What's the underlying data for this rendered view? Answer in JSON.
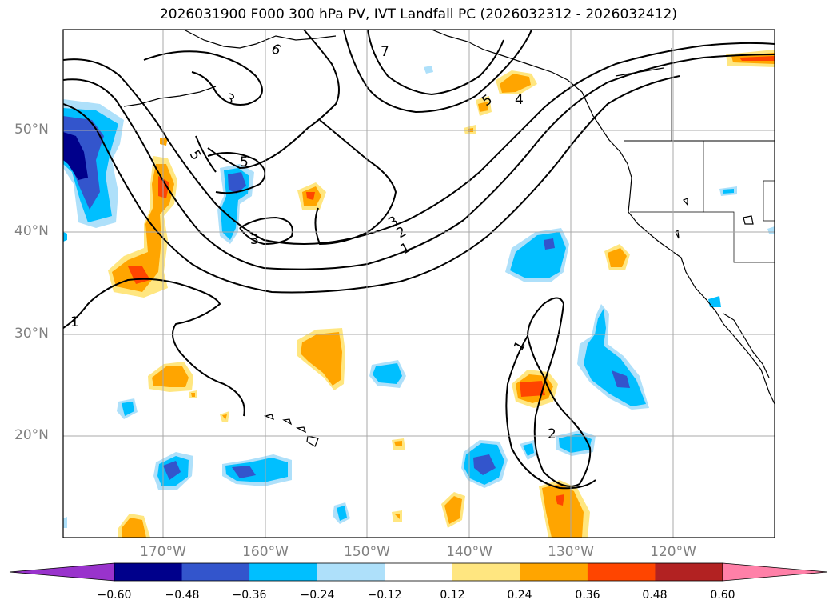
{
  "title": "2026031900 F000 300 hPa PV, IVT Landfall PC (2026032312 - 2026032412)",
  "lat_labels": [
    "50°N",
    "40°N",
    "30°N",
    "20°N"
  ],
  "lon_labels": [
    "170°W",
    "160°W",
    "150°W",
    "140°W",
    "130°W",
    "120°W"
  ],
  "colorbar": {
    "ticks": [
      "−0.60",
      "−0.48",
      "−0.36",
      "−0.24",
      "−0.12",
      "0.12",
      "0.24",
      "0.36",
      "0.48",
      "0.60"
    ],
    "colors": [
      "#9933cc",
      "#00008b",
      "#3355cc",
      "#00bfff",
      "#aee0fa",
      "#ffffff",
      "#ffe680",
      "#ffa500",
      "#ff4500",
      "#b22222",
      "#ff80a8"
    ]
  },
  "contour_labels": [
    "1",
    "1",
    "1",
    "2",
    "2",
    "3",
    "3",
    "3",
    "4",
    "5",
    "5",
    "5",
    "6",
    "7"
  ],
  "colors": {
    "neg_light": "#aee0fa",
    "neg_mid": "#00bfff",
    "neg_strong": "#3355cc",
    "neg_max": "#00008b",
    "pos_light": "#ffe680",
    "pos_mid": "#ffa500",
    "pos_strong": "#ff4500"
  }
}
